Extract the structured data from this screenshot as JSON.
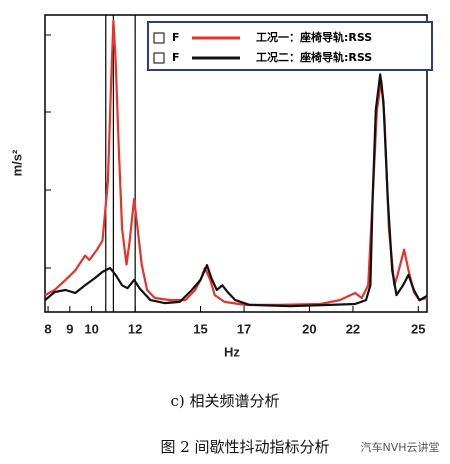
{
  "chart_data": {
    "type": "line",
    "x_label": "Hz",
    "y_label": "m/s²",
    "subcaption": "c) 相关频谱分析",
    "caption": "图 2 间歇性抖动指标分析",
    "watermark": "汽车NVH云讲堂",
    "xlim": [
      7.86,
      25.4
    ],
    "ylim": [
      0,
      100
    ],
    "xticks": [
      8,
      9,
      10,
      12,
      15,
      17,
      20,
      22,
      25
    ],
    "reference_lines_x": [
      10.65,
      11.0,
      12.0
    ],
    "series": [
      {
        "name": "工况一：座椅导轨:RSS",
        "legend_prefix": "F",
        "color": "#e8322a",
        "x": [
          7.86,
          8.3,
          8.8,
          9.25,
          9.7,
          9.9,
          10.25,
          10.5,
          10.75,
          10.9,
          11.0,
          11.1,
          11.25,
          11.4,
          11.6,
          11.75,
          11.95,
          12.1,
          12.3,
          12.55,
          12.9,
          13.6,
          14.3,
          14.75,
          15,
          15.2,
          15.45,
          15.65,
          16.1,
          17.05,
          18.65,
          20.5,
          21.4,
          22.1,
          22.4,
          22.7,
          22.9,
          23.1,
          23.3,
          23.45,
          23.65,
          23.9,
          24.05,
          24.35,
          24.55,
          24.8,
          25.05,
          25.4
        ],
        "values": [
          5.7,
          7.4,
          10.8,
          14,
          19,
          17.5,
          21,
          24,
          44,
          78,
          98,
          85,
          55,
          28,
          16,
          24,
          38,
          29,
          16,
          7.4,
          4.7,
          4,
          4,
          7.4,
          10.8,
          14.8,
          10.8,
          5.7,
          3.4,
          2.4,
          2.4,
          2.7,
          4,
          6.4,
          4.7,
          9,
          38,
          68,
          78,
          65,
          28,
          9,
          12.5,
          21,
          14,
          6.7,
          4,
          4.7
        ]
      },
      {
        "name": "工况二：座椅导轨:RSS",
        "legend_prefix": "F",
        "color": "#111111",
        "x": [
          7.86,
          8.3,
          8.8,
          9.25,
          9.7,
          10.15,
          10.5,
          10.85,
          11.1,
          11.4,
          11.65,
          11.95,
          12.2,
          12.7,
          13.35,
          14.05,
          14.6,
          15,
          15.3,
          15.5,
          15.75,
          16,
          16.25,
          16.6,
          17.25,
          19.1,
          20.95,
          22.1,
          22.6,
          22.8,
          22.9,
          23.05,
          23.25,
          23.4,
          23.6,
          23.8,
          24,
          24.3,
          24.55,
          24.8,
          25.05,
          25.4
        ],
        "values": [
          4,
          6.7,
          7.4,
          6.4,
          9,
          11.4,
          13.5,
          14.8,
          12.5,
          9,
          8,
          10.8,
          8,
          4,
          3,
          3.4,
          7.4,
          10.8,
          15.8,
          11.4,
          7.4,
          9,
          6.7,
          4,
          2.4,
          2,
          2.4,
          2.7,
          4,
          9,
          38,
          68,
          80,
          71,
          38,
          14,
          5.7,
          9,
          12.5,
          7.4,
          4,
          5.4
        ]
      }
    ]
  }
}
